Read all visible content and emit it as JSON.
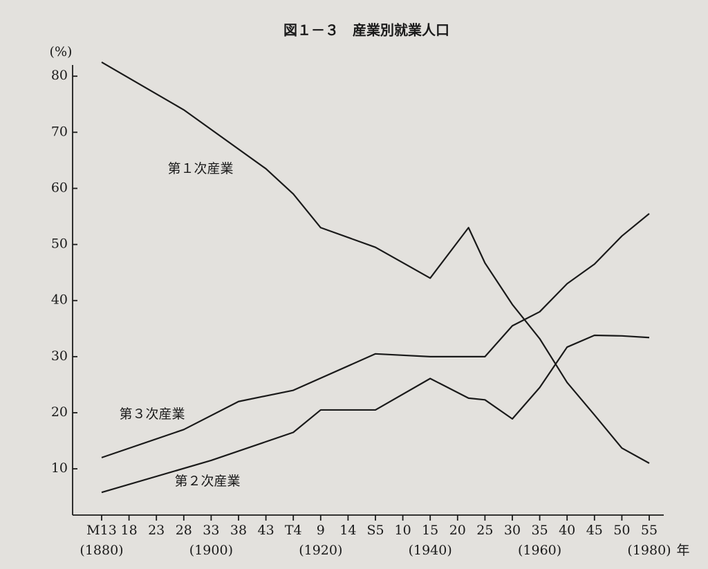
{
  "chart_data": {
    "type": "line",
    "title": "図１－３　産業別就業人口",
    "ylabel": "(%)",
    "x_unit": "年",
    "xlim": [
      1880,
      1980
    ],
    "ylim": [
      2,
      82
    ],
    "yticks": [
      10,
      20,
      30,
      40,
      50,
      60,
      70,
      80
    ],
    "xticks": [
      {
        "value": 1880,
        "label": "M13"
      },
      {
        "value": 1885,
        "label": "18"
      },
      {
        "value": 1890,
        "label": "23"
      },
      {
        "value": 1895,
        "label": "28"
      },
      {
        "value": 1900,
        "label": "33"
      },
      {
        "value": 1905,
        "label": "38"
      },
      {
        "value": 1910,
        "label": "43"
      },
      {
        "value": 1915,
        "label": "T4"
      },
      {
        "value": 1920,
        "label": "9"
      },
      {
        "value": 1925,
        "label": "14"
      },
      {
        "value": 1930,
        "label": "S5"
      },
      {
        "value": 1935,
        "label": "10"
      },
      {
        "value": 1940,
        "label": "15"
      },
      {
        "value": 1945,
        "label": "20"
      },
      {
        "value": 1950,
        "label": "25"
      },
      {
        "value": 1955,
        "label": "30"
      },
      {
        "value": 1960,
        "label": "35"
      },
      {
        "value": 1965,
        "label": "40"
      },
      {
        "value": 1970,
        "label": "45"
      },
      {
        "value": 1975,
        "label": "50"
      },
      {
        "value": 1980,
        "label": "55"
      }
    ],
    "x_year_labels": [
      {
        "value": 1880,
        "label": "(1880)"
      },
      {
        "value": 1900,
        "label": "(1900)"
      },
      {
        "value": 1920,
        "label": "(1920)"
      },
      {
        "value": 1940,
        "label": "(1940)"
      },
      {
        "value": 1960,
        "label": "(1960)"
      },
      {
        "value": 1980,
        "label": "(1980)"
      }
    ],
    "series": [
      {
        "name": "第１次産業",
        "color": "#1a1a1a",
        "x": [
          1880,
          1895,
          1910,
          1915,
          1920,
          1930,
          1940,
          1947,
          1950,
          1955,
          1960,
          1965,
          1970,
          1975,
          1980
        ],
        "values": [
          82.5,
          74,
          63.5,
          59,
          53,
          49.5,
          44,
          53,
          46.7,
          39.3,
          33.2,
          25.4,
          19.6,
          13.7,
          11
        ]
      },
      {
        "name": "第２次産業",
        "color": "#1a1a1a",
        "x": [
          1880,
          1900,
          1915,
          1920,
          1930,
          1940,
          1947,
          1950,
          1955,
          1960,
          1965,
          1970,
          1975,
          1980
        ],
        "values": [
          5.8,
          11.5,
          16.5,
          20.5,
          20.5,
          26.1,
          22.6,
          22.3,
          18.9,
          24.5,
          31.7,
          33.8,
          33.7,
          33.4
        ]
      },
      {
        "name": "第３次産業",
        "color": "#1a1a1a",
        "x": [
          1880,
          1895,
          1905,
          1915,
          1930,
          1940,
          1950,
          1955,
          1960,
          1965,
          1970,
          1975,
          1980
        ],
        "values": [
          12,
          17,
          22,
          24,
          30.5,
          30,
          30,
          35.5,
          38,
          43,
          46.5,
          51.5,
          55.5
        ]
      }
    ]
  }
}
